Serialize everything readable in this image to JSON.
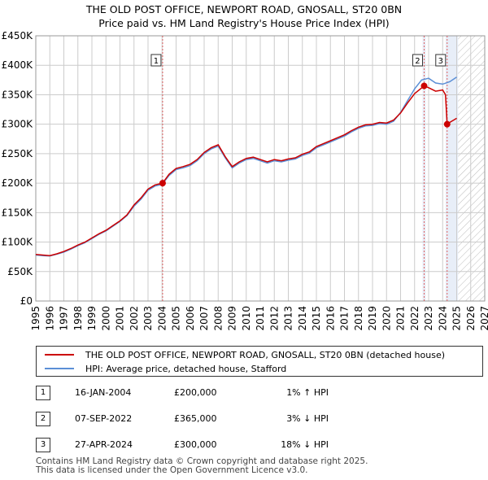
{
  "titles": {
    "line1": "THE OLD POST OFFICE, NEWPORT ROAD, GNOSALL, ST20 0BN",
    "line2": "Price paid vs. HM Land Registry's House Price Index (HPI)"
  },
  "legend": {
    "property_label": "THE OLD POST OFFICE, NEWPORT ROAD, GNOSALL, ST20 0BN (detached house)",
    "hpi_label": "HPI: Average price, detached house, Stafford"
  },
  "colors": {
    "property": "#cc0000",
    "hpi": "#5b8fd6",
    "marker_line": "#e06060",
    "highlight": "#e8eef8",
    "grid": "#cccccc"
  },
  "sales": [
    {
      "num": "1",
      "date": "16-JAN-2004",
      "price": "£200,000",
      "hpi": "1% ↑ HPI"
    },
    {
      "num": "2",
      "date": "07-SEP-2022",
      "price": "£365,000",
      "hpi": "3% ↓ HPI"
    },
    {
      "num": "3",
      "date": "27-APR-2024",
      "price": "£300,000",
      "hpi": "18% ↓ HPI"
    }
  ],
  "footer": {
    "line1": "Contains HM Land Registry data © Crown copyright and database right 2025.",
    "line2": "This data is licensed under the Open Government Licence v3.0."
  },
  "chart_data": {
    "type": "line",
    "title": "THE OLD POST OFFICE, NEWPORT ROAD, GNOSALL, ST20 0BN",
    "subtitle": "Price paid vs. HM Land Registry's House Price Index (HPI)",
    "xlabel": "",
    "ylabel": "",
    "xlim": [
      1995,
      2027
    ],
    "ylim": [
      0,
      450000
    ],
    "x_ticks": [
      1995,
      1996,
      1997,
      1998,
      1999,
      2000,
      2001,
      2002,
      2003,
      2004,
      2005,
      2006,
      2007,
      2008,
      2009,
      2010,
      2011,
      2012,
      2013,
      2014,
      2015,
      2016,
      2017,
      2018,
      2019,
      2020,
      2021,
      2022,
      2023,
      2024,
      2025,
      2026,
      2027
    ],
    "y_ticks": [
      0,
      50000,
      100000,
      150000,
      200000,
      250000,
      300000,
      350000,
      400000,
      450000
    ],
    "y_tick_labels": [
      "£0",
      "£50K",
      "£100K",
      "£150K",
      "£200K",
      "£250K",
      "£300K",
      "£350K",
      "£400K",
      "£450K"
    ],
    "grid": true,
    "future_region_start": 2025.1,
    "series": [
      {
        "name": "THE OLD POST OFFICE, NEWPORT ROAD, GNOSALL, ST20 0BN (detached house)",
        "x": [
          1995.0,
          1995.5,
          1996.0,
          1996.5,
          1997.0,
          1997.5,
          1998.0,
          1998.5,
          1999.0,
          1999.5,
          2000.0,
          2000.5,
          2001.0,
          2001.5,
          2002.0,
          2002.5,
          2003.0,
          2003.5,
          2004.04,
          2004.5,
          2005.0,
          2005.5,
          2006.0,
          2006.5,
          2007.0,
          2007.5,
          2008.0,
          2008.5,
          2009.0,
          2009.5,
          2010.0,
          2010.5,
          2011.0,
          2011.5,
          2012.0,
          2012.5,
          2013.0,
          2013.5,
          2014.0,
          2014.5,
          2015.0,
          2015.5,
          2016.0,
          2016.5,
          2017.0,
          2017.5,
          2018.0,
          2018.5,
          2019.0,
          2019.5,
          2020.0,
          2020.5,
          2021.0,
          2021.5,
          2022.0,
          2022.68,
          2023.0,
          2023.5,
          2024.0,
          2024.2,
          2024.32,
          2024.5,
          2025.0
        ],
        "values": [
          79000,
          78000,
          77000,
          80000,
          84000,
          89000,
          95000,
          100000,
          107000,
          114000,
          120000,
          128000,
          136000,
          146000,
          163000,
          175000,
          190000,
          197000,
          200000,
          215000,
          225000,
          228000,
          232000,
          240000,
          252000,
          260000,
          265000,
          245000,
          228000,
          236000,
          242000,
          244000,
          240000,
          236000,
          240000,
          238000,
          241000,
          243000,
          249000,
          253000,
          262000,
          267000,
          272000,
          277000,
          282000,
          289000,
          295000,
          299000,
          300000,
          303000,
          302000,
          307000,
          319000,
          336000,
          352000,
          365000,
          362000,
          356000,
          358000,
          350000,
          300000,
          303000,
          310000
        ]
      },
      {
        "name": "HPI: Average price, detached house, Stafford",
        "x": [
          1995.0,
          1995.5,
          1996.0,
          1996.5,
          1997.0,
          1997.5,
          1998.0,
          1998.5,
          1999.0,
          1999.5,
          2000.0,
          2000.5,
          2001.0,
          2001.5,
          2002.0,
          2002.5,
          2003.0,
          2003.5,
          2004.0,
          2004.5,
          2005.0,
          2005.5,
          2006.0,
          2006.5,
          2007.0,
          2007.5,
          2008.0,
          2008.5,
          2009.0,
          2009.5,
          2010.0,
          2010.5,
          2011.0,
          2011.5,
          2012.0,
          2012.5,
          2013.0,
          2013.5,
          2014.0,
          2014.5,
          2015.0,
          2015.5,
          2016.0,
          2016.5,
          2017.0,
          2017.5,
          2018.0,
          2018.5,
          2019.0,
          2019.5,
          2020.0,
          2020.5,
          2021.0,
          2021.5,
          2022.0,
          2022.5,
          2023.0,
          2023.5,
          2024.0,
          2024.5,
          2025.0
        ],
        "values": [
          78000,
          77000,
          76500,
          79500,
          83000,
          88000,
          94000,
          99000,
          106000,
          113000,
          119000,
          127000,
          135000,
          145000,
          161000,
          173000,
          188000,
          195000,
          198000,
          213000,
          223000,
          226000,
          230000,
          238000,
          250000,
          258000,
          263000,
          243000,
          226000,
          234000,
          240000,
          242000,
          238000,
          234000,
          238000,
          236000,
          239000,
          241000,
          247000,
          251000,
          260000,
          265000,
          270000,
          275000,
          280000,
          287000,
          293000,
          297000,
          298000,
          301000,
          300000,
          305000,
          320000,
          340000,
          360000,
          375000,
          378000,
          370000,
          368000,
          372000,
          380000
        ]
      }
    ],
    "markers": [
      {
        "label": "1",
        "x": 2004.04,
        "y": 200000
      },
      {
        "label": "2",
        "x": 2022.68,
        "y": 365000
      },
      {
        "label": "3",
        "x": 2024.32,
        "y": 300000
      }
    ]
  }
}
